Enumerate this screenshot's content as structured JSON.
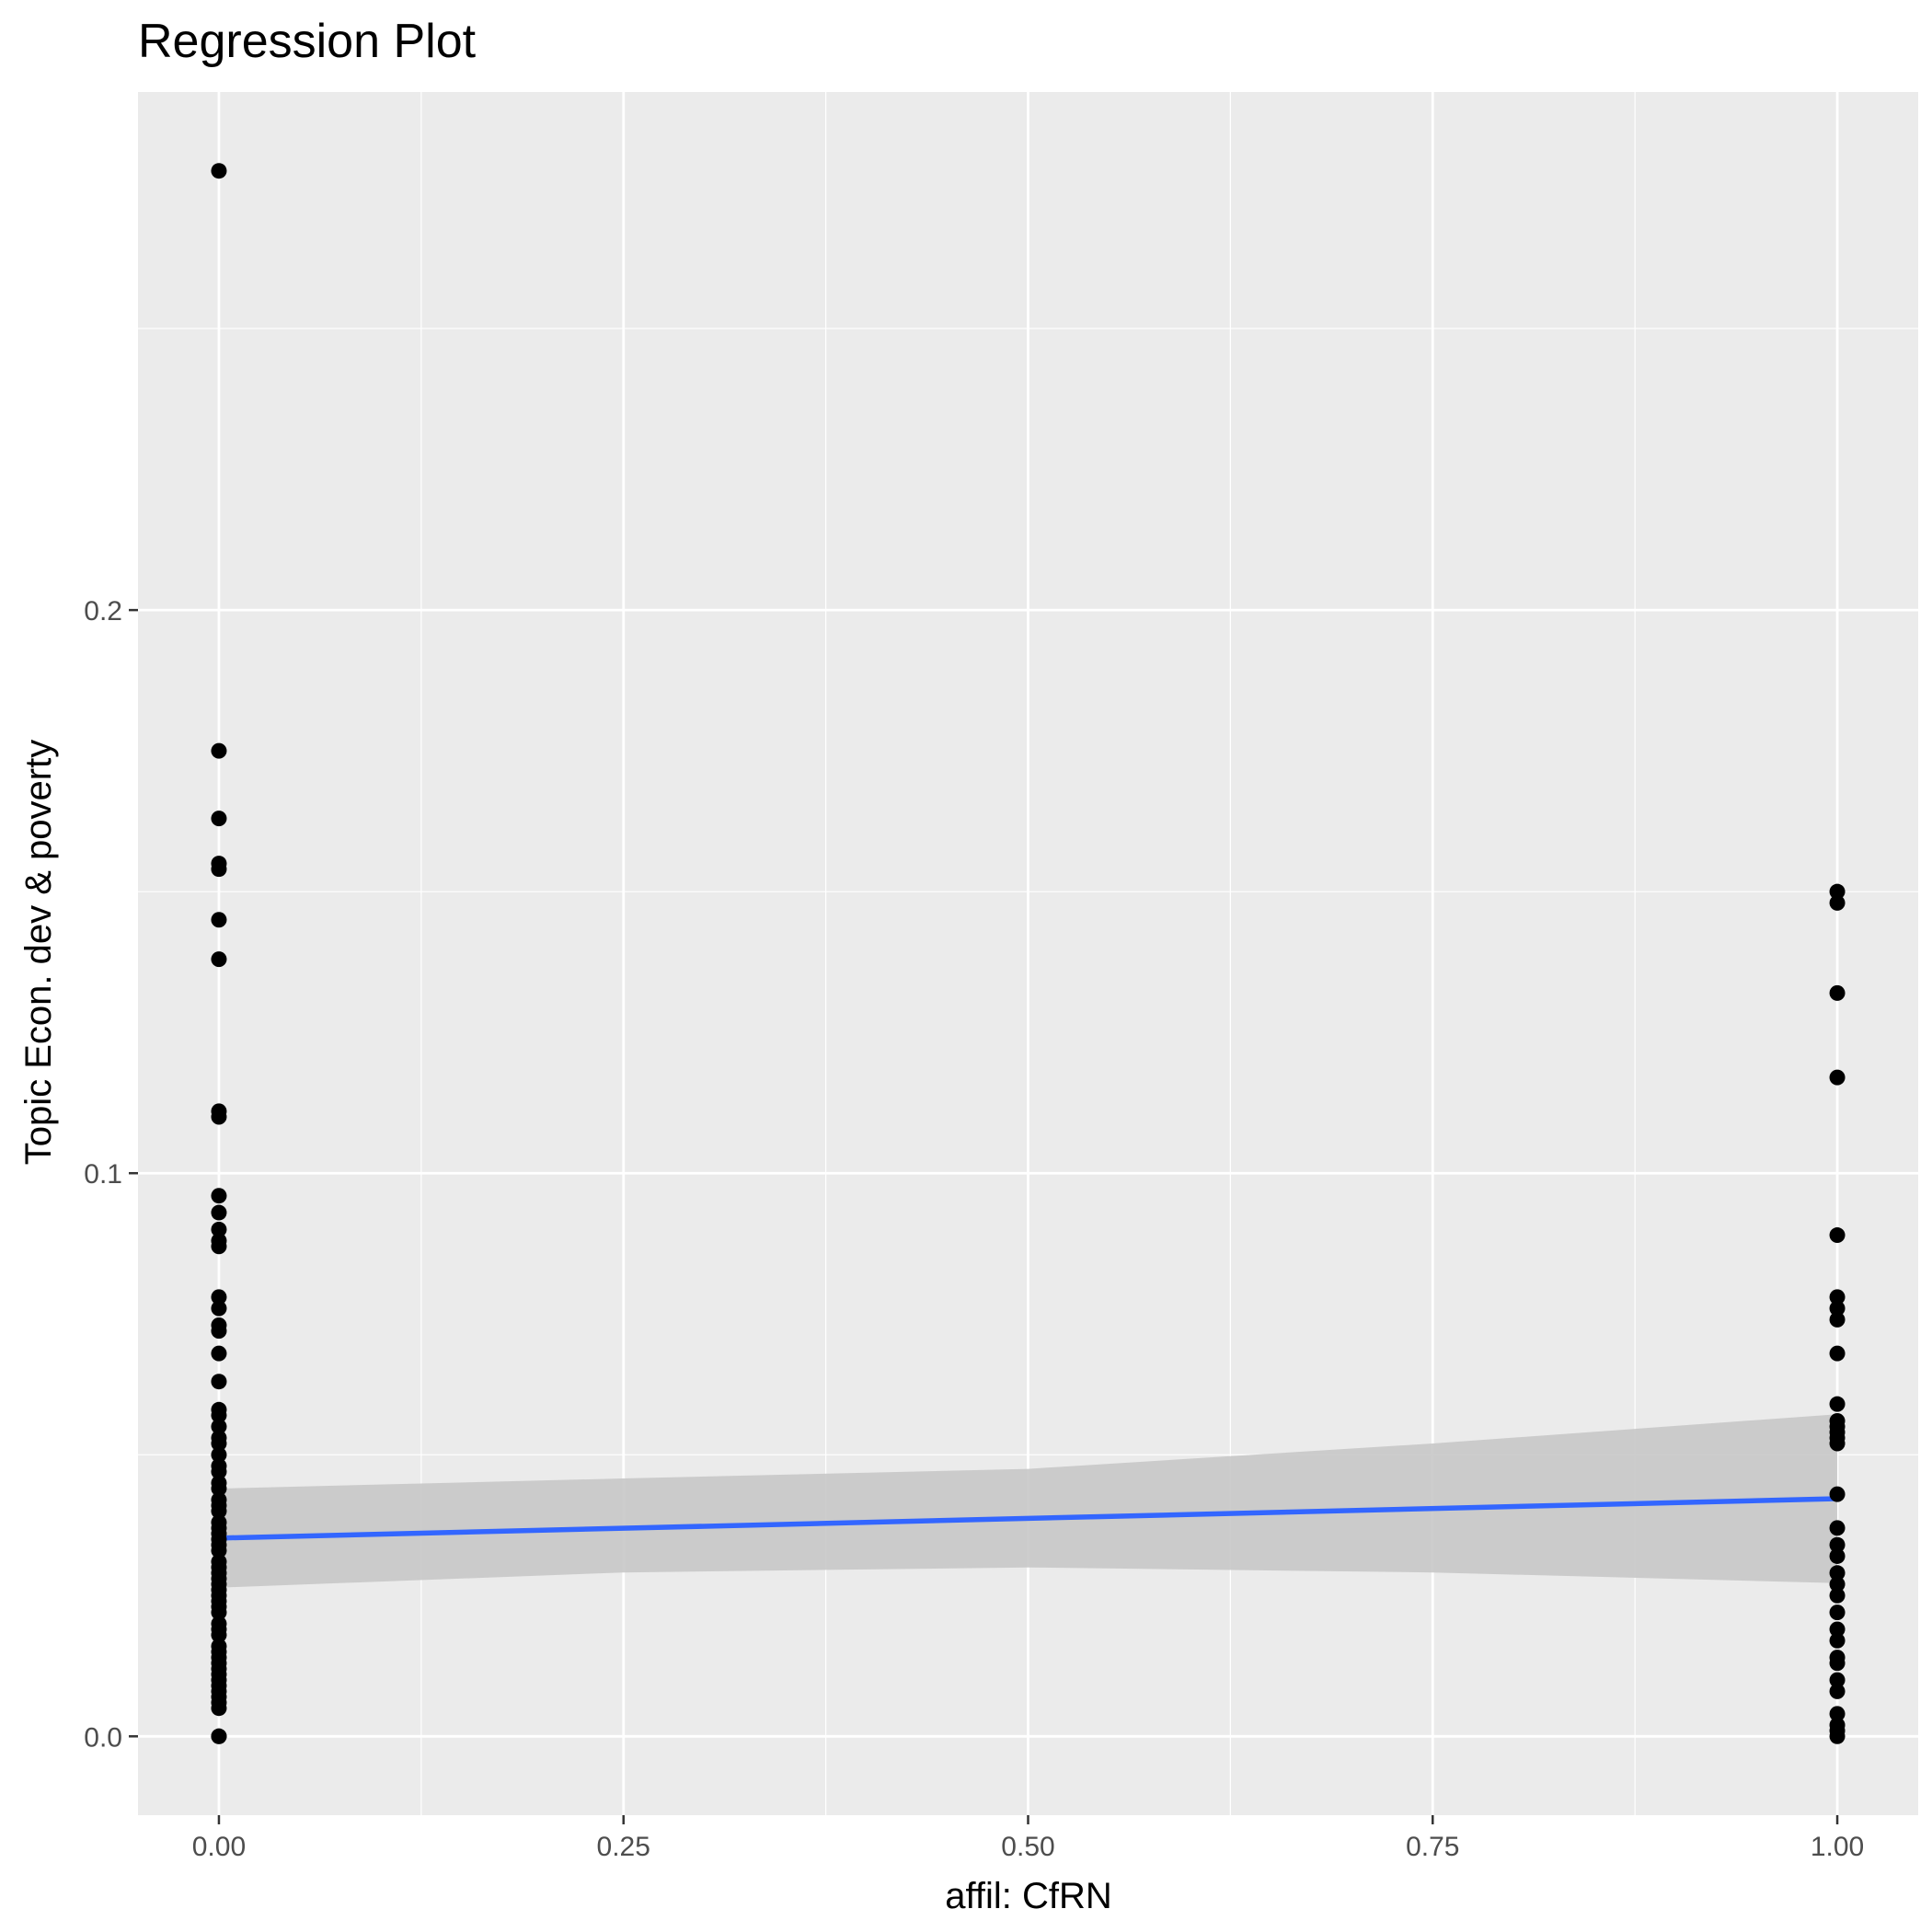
{
  "chart_data": {
    "type": "scatter",
    "title": "Regression Plot",
    "xlabel": "affil: CfRN",
    "ylabel": "Topic Econ. dev & poverty",
    "xlim": [
      -0.05,
      1.05
    ],
    "ylim": [
      -0.014,
      0.292
    ],
    "x_ticks": [
      0,
      0.25,
      0.5,
      0.75,
      1
    ],
    "x_tick_labels": [
      "0.00",
      "0.25",
      "0.50",
      "0.75",
      "1.00"
    ],
    "y_ticks": [
      0,
      0.1,
      0.2
    ],
    "y_tick_labels": [
      "0.0",
      "0.1",
      "0.2"
    ],
    "grid": true,
    "colors": {
      "panel": "#ebebeb",
      "grid": "#ffffff",
      "points": "#000000",
      "fit_line": "#3366ff",
      "confidence_band": "#c8c8c8"
    },
    "points": {
      "x0": [
        0.278,
        0.175,
        0.163,
        0.155,
        0.154,
        0.145,
        0.138,
        0.111,
        0.11,
        0.096,
        0.093,
        0.09,
        0.088,
        0.087,
        0.078,
        0.076,
        0.073,
        0.072,
        0.068,
        0.063,
        0.058,
        0.057,
        0.055,
        0.053,
        0.052,
        0.05,
        0.048,
        0.047,
        0.045,
        0.044,
        0.042,
        0.041,
        0.04,
        0.038,
        0.037,
        0.036,
        0.035,
        0.034,
        0.033,
        0.031,
        0.03,
        0.029,
        0.028,
        0.027,
        0.026,
        0.025,
        0.024,
        0.023,
        0.022,
        0.02,
        0.019,
        0.018,
        0.016,
        0.015,
        0.014,
        0.013,
        0.012,
        0.011,
        0.01,
        0.009,
        0.008,
        0.007,
        0.006,
        0.005,
        0.0,
        0.0
      ],
      "x1": [
        0.15,
        0.148,
        0.132,
        0.117,
        0.089,
        0.078,
        0.076,
        0.074,
        0.068,
        0.059,
        0.056,
        0.055,
        0.054,
        0.053,
        0.052,
        0.043,
        0.037,
        0.034,
        0.032,
        0.029,
        0.027,
        0.025,
        0.022,
        0.019,
        0.017,
        0.014,
        0.013,
        0.01,
        0.008,
        0.004,
        0.002,
        0.001,
        0.0
      ]
    },
    "fit": {
      "x": [
        0,
        1
      ],
      "y": [
        0.0352,
        0.0422
      ]
    },
    "confidence_band": {
      "x": [
        0,
        0.25,
        0.5,
        0.75,
        1
      ],
      "lower": [
        0.0264,
        0.0291,
        0.03,
        0.0291,
        0.0272
      ],
      "upper": [
        0.044,
        0.0458,
        0.0475,
        0.052,
        0.0572
      ]
    }
  }
}
